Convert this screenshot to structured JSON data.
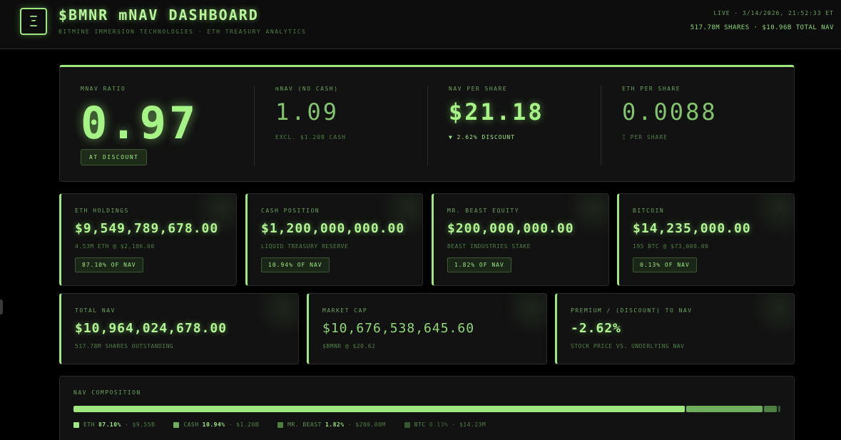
{
  "header": {
    "logo_glyph": "Ξ",
    "title": "$BMNR mNAV DASHBOARD",
    "subtitle": "BITMINE IMMERSION TECHNOLOGIES · ETH TREASURY ANALYTICS",
    "status_line": "LIVE · 3/14/2026, 21:52:33 ET",
    "summary_line": "517.78M SHARES · $10.96B TOTAL NAV"
  },
  "metrics": {
    "mnav": {
      "label": "MNAV RATIO",
      "value": "0.97",
      "badge": "AT DISCOUNT"
    },
    "mnav_no_cash": {
      "label": "mNAV (NO CASH)",
      "value": "1.09",
      "sub": "EXCL. $1.20B CASH"
    },
    "nav_per_share": {
      "label": "NAV PER SHARE",
      "value": "$21.18",
      "sub": "▼ 2.62% DISCOUNT"
    },
    "eth_per_share": {
      "label": "ETH PER SHARE",
      "value": "0.0088",
      "sub": "Ξ PER SHARE"
    }
  },
  "holdings": [
    {
      "label": "ETH HOLDINGS",
      "value": "$9,549,789,678.00",
      "sub": "4.53M ETH @ $2,106.00",
      "badge": "87.10% OF NAV"
    },
    {
      "label": "CASH POSITION",
      "value": "$1,200,000,000.00",
      "sub": "LIQUID TREASURY RESERVE",
      "badge": "10.94% OF NAV"
    },
    {
      "label": "MR. BEAST EQUITY",
      "value": "$200,000,000.00",
      "sub": "BEAST INDUSTRIES STAKE",
      "badge": "1.82% OF NAV"
    },
    {
      "label": "BITCOIN",
      "value": "$14,235,000.00",
      "sub": "195 BTC @ $73,000.00",
      "badge": "0.13% OF NAV"
    }
  ],
  "totals": [
    {
      "label": "TOTAL NAV",
      "value": "$10,964,024,678.00",
      "sub": "517.78M SHARES OUTSTANDING"
    },
    {
      "label": "MARKET CAP",
      "value": "$10,676,538,645.60",
      "sub": "$BMNR @ $20.62"
    },
    {
      "label": "PREMIUM / (DISCOUNT) TO NAV",
      "value": "-2.62%",
      "sub": "STOCK PRICE VS. UNDERLYING NAV"
    }
  ],
  "composition": {
    "label": "NAV COMPOSITION",
    "segments": [
      {
        "name": "ETH",
        "pct": "87.10%",
        "amount": "$9.55B",
        "share": 87.1,
        "color": "#9fe87f"
      },
      {
        "name": "CASH",
        "pct": "10.94%",
        "amount": "$1.20B",
        "share": 10.94,
        "color": "#6fae5c"
      },
      {
        "name": "MR. BEAST",
        "pct": "1.82%",
        "amount": "$200.00M",
        "share": 1.82,
        "color": "#4e8042"
      },
      {
        "name": "BTC",
        "pct": "0.13%",
        "amount": "$14.23M",
        "share": 0.13,
        "color": "#355a2e"
      }
    ]
  },
  "colors": {
    "accent": "#9fe87f",
    "background": "#000000",
    "panel": "#121212"
  }
}
